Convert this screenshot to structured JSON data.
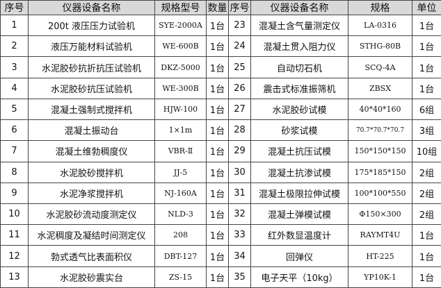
{
  "table": {
    "header": [
      "序号",
      "仪器设备名称",
      "规格型号",
      "数量",
      "序号",
      "仪器设备名称",
      "规格",
      "单位"
    ],
    "rows": [
      [
        "1",
        "200t 液压压力试验机",
        "SYE-2000A",
        "1台",
        "23",
        "混凝土含气量测定仪",
        "LA-0316",
        "1台"
      ],
      [
        "2",
        "液压万能材料试验机",
        "WE-600B",
        "1台",
        "24",
        "混凝土贯入阻力仪",
        "STHG-80B",
        "1台"
      ],
      [
        "3",
        "水泥胶砂抗折抗压试验机",
        "DKZ-5000",
        "1台",
        "25",
        "自动切石机",
        "SCQ-4A",
        "1台"
      ],
      [
        "4",
        "水泥胶砂抗压试验机",
        "WE-300B",
        "1台",
        "26",
        "震击式标准振筛机",
        "ZBSX",
        "1台"
      ],
      [
        "5",
        "混凝土强制式搅拌机",
        "HJW-100",
        "1台",
        "27",
        "水泥胶砂试模",
        "40*40*160",
        "6组"
      ],
      [
        "6",
        "混凝土振动台",
        "1×1m",
        "1台",
        "28",
        "砂浆试模",
        "70.7*70.7*70.7",
        "3组"
      ],
      [
        "7",
        "混凝土维勃稠度仪",
        "VBR-Ⅱ",
        "1台",
        "29",
        "混凝土抗压试模",
        "150*150*150",
        "10组"
      ],
      [
        "8",
        "水泥胶砂搅拌机",
        "JJ-5",
        "1台",
        "30",
        "混凝土抗渗试模",
        "175*185*150",
        "2组"
      ],
      [
        "9",
        "水泥净浆搅拌机",
        "NJ-160A",
        "1台",
        "31",
        "混凝土极限拉伸试模",
        "100*100*550",
        "2组"
      ],
      [
        "10",
        "水泥胶砂流动度测定仪",
        "NLD-3",
        "1台",
        "32",
        "混凝土弹模试模",
        "Φ150×300",
        "2组"
      ],
      [
        "11",
        "水泥稠度及凝结时间测定仪",
        "208",
        "1台",
        "33",
        "红外数显温度计",
        "RAYMT4U",
        "1台"
      ],
      [
        "12",
        "勃式透气比表面积仪",
        "DBT-127",
        "1台",
        "34",
        "回弹仪",
        "HT-225",
        "1台"
      ],
      [
        "13",
        "水泥胶砂震实台",
        "ZS-15",
        "1台",
        "35",
        "电子天平（10kg）",
        "YP10K-1",
        "1台"
      ]
    ]
  }
}
